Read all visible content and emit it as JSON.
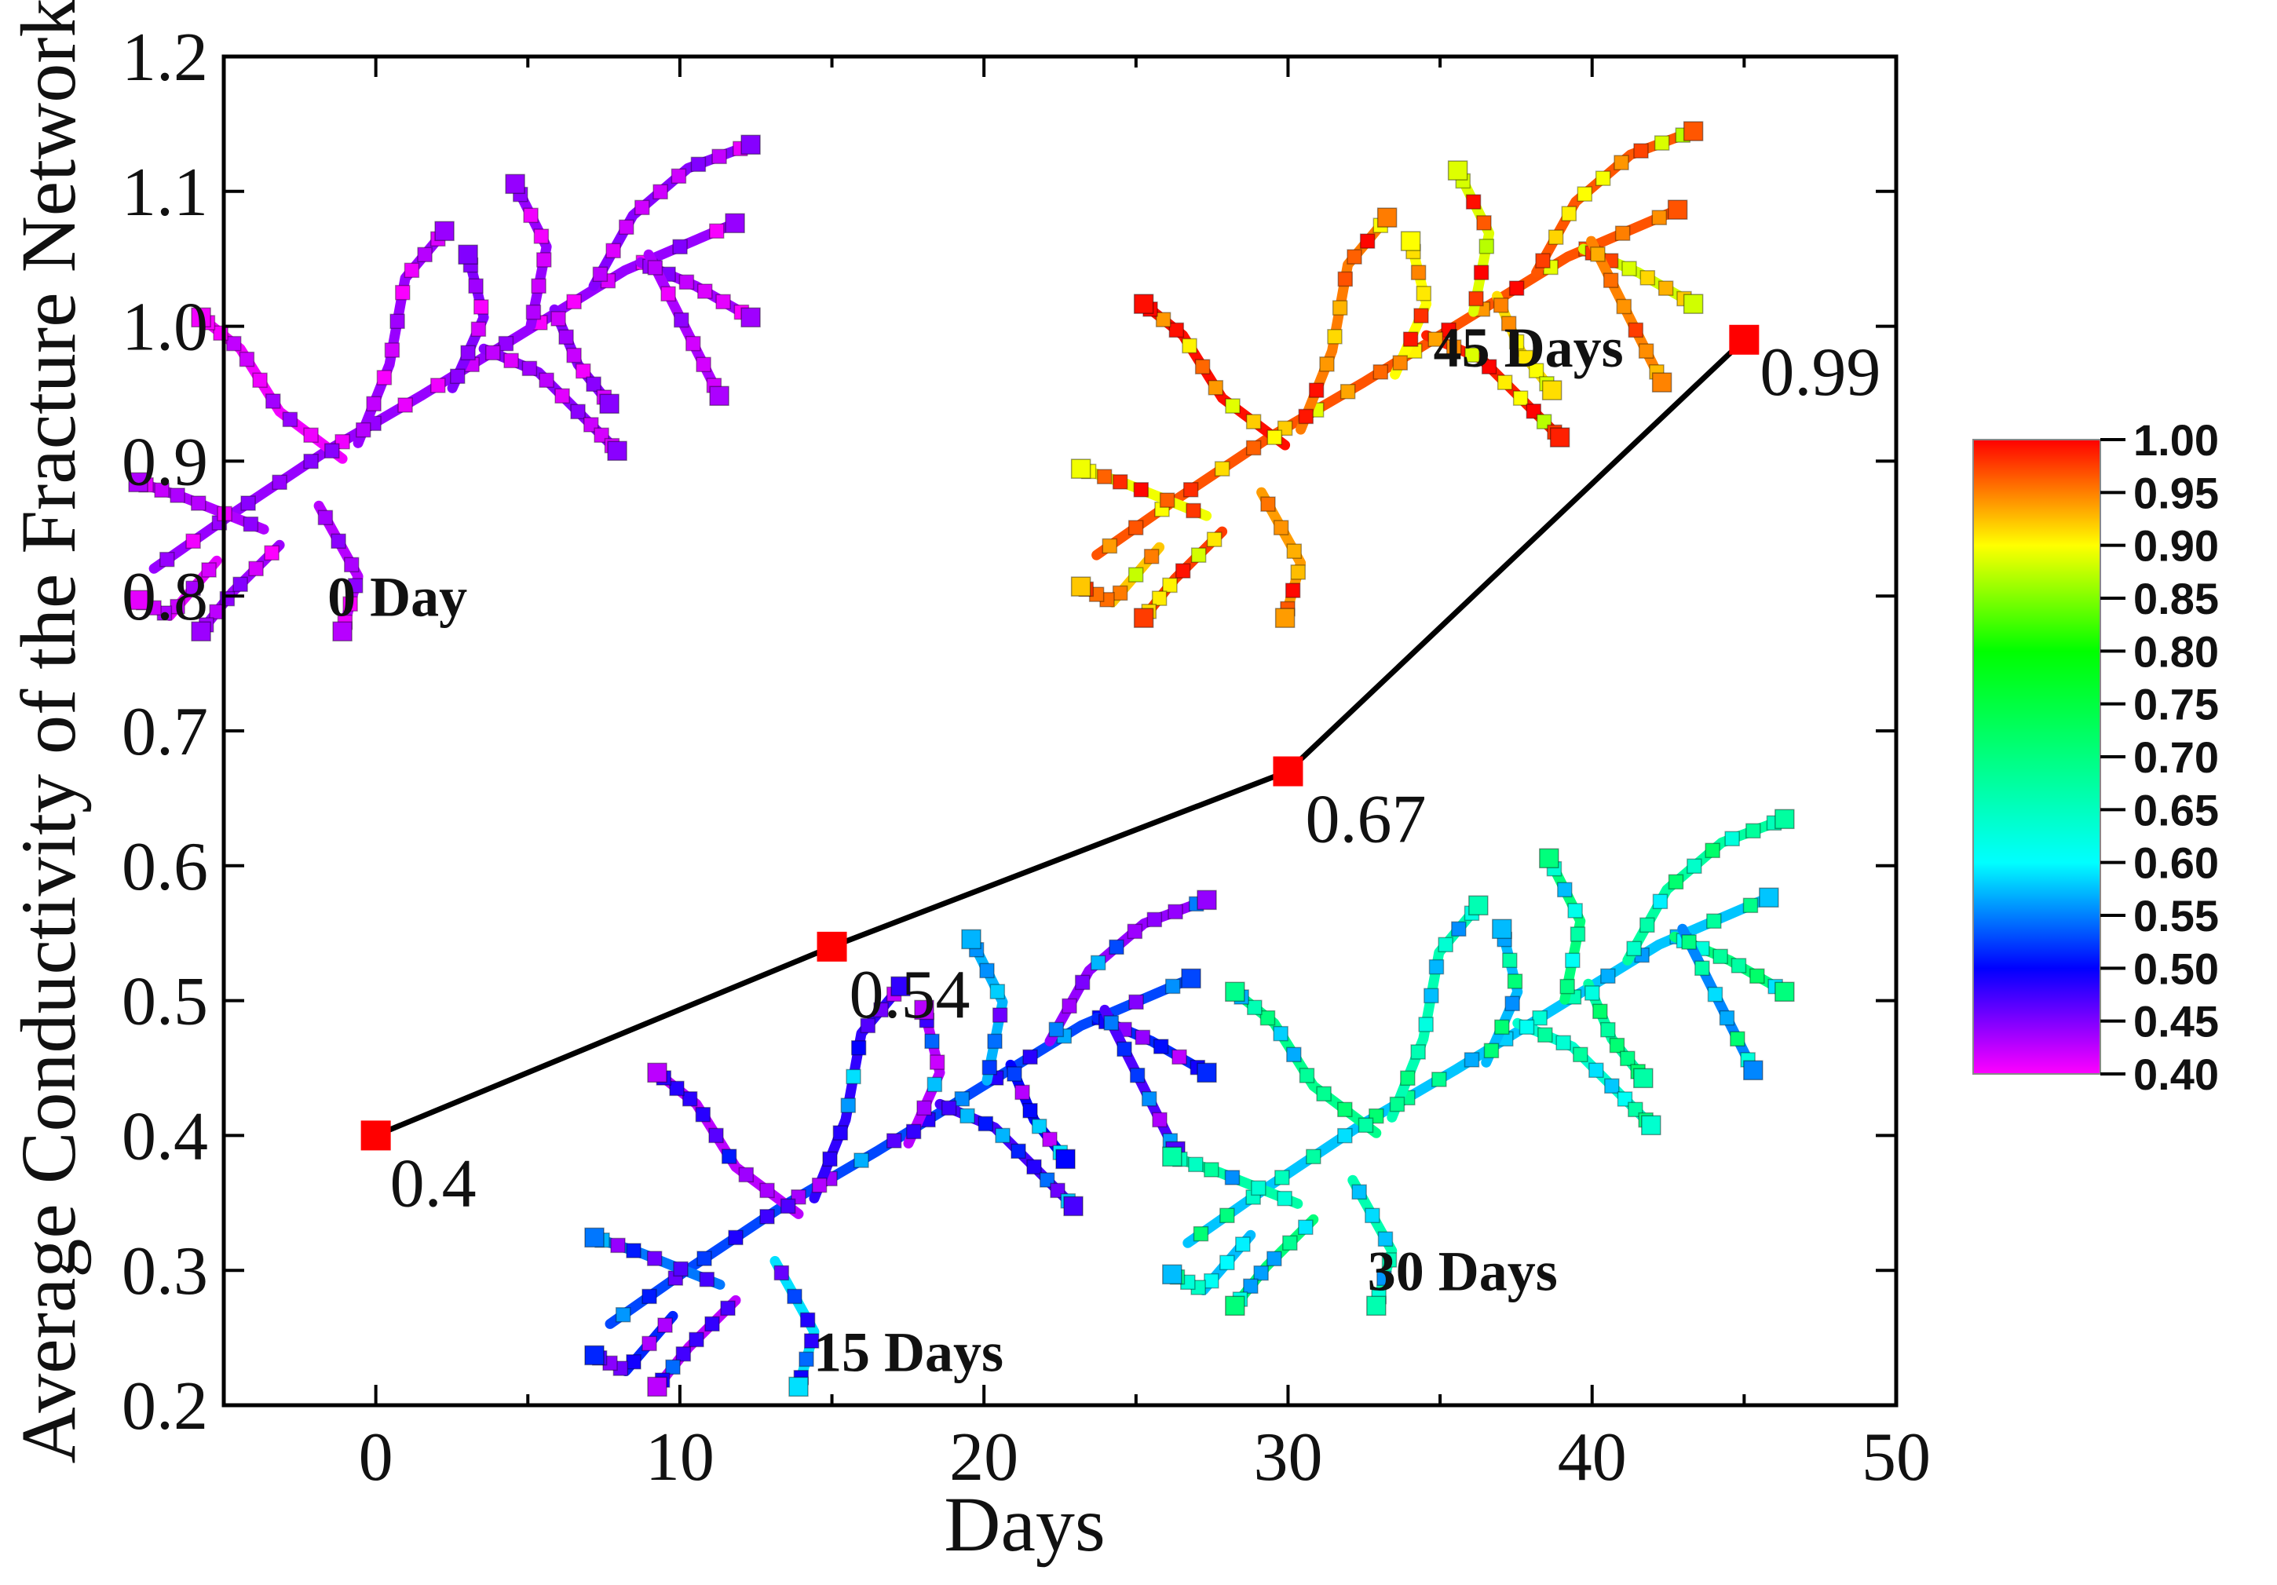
{
  "chart_data": {
    "type": "line",
    "xlabel": "Days",
    "ylabel": "Average Conductivity of the Fracture Network",
    "xlim": [
      -5,
      50
    ],
    "ylim": [
      0.2,
      1.2
    ],
    "xticks": [
      0,
      10,
      20,
      30,
      40,
      50
    ],
    "xtick_labels": [
      "0",
      "10",
      "20",
      "30",
      "40",
      "50"
    ],
    "yticks": [
      0.2,
      0.3,
      0.4,
      0.5,
      0.6,
      0.7,
      0.8,
      0.9,
      1.0,
      1.1,
      1.2
    ],
    "ytick_labels": [
      "0.2",
      "0.3",
      "0.4",
      "0.5",
      "0.6",
      "0.7",
      "0.8",
      "0.9",
      "1.0",
      "1.1",
      "1.2"
    ],
    "series": [
      {
        "name": "Average conductivity",
        "x": [
          0,
          15,
          30,
          45
        ],
        "y": [
          0.4,
          0.54,
          0.67,
          0.99
        ],
        "labels": [
          "0.4",
          "0.54",
          "0.67",
          "0.99"
        ],
        "line_color": "#000000",
        "marker_color": "#ff0000"
      }
    ],
    "insets": [
      {
        "label": "0 Day",
        "value": 0.4,
        "at": [
          2,
          0.96
        ]
      },
      {
        "label": "15 Days",
        "value": 0.54,
        "at": [
          17,
          0.4
        ]
      },
      {
        "label": "30 Days",
        "value": 0.67,
        "at": [
          36,
          0.46
        ]
      },
      {
        "label": "45 Days",
        "value": 0.99,
        "at": [
          33,
          0.97
        ]
      }
    ],
    "colorbar": {
      "min": 0.4,
      "max": 1.0,
      "tick_labels": [
        "1.00",
        "0.95",
        "0.90",
        "0.85",
        "0.80",
        "0.75",
        "0.70",
        "0.65",
        "0.60",
        "0.55",
        "0.50",
        "0.45",
        "0.40"
      ],
      "stops": [
        {
          "v": 0.4,
          "c": "#ff00ff"
        },
        {
          "v": 0.5,
          "c": "#0000ff"
        },
        {
          "v": 0.6,
          "c": "#00ffff"
        },
        {
          "v": 0.8,
          "c": "#00ff00"
        },
        {
          "v": 0.9,
          "c": "#ffff00"
        },
        {
          "v": 1.0,
          "c": "#ff0000"
        }
      ]
    }
  }
}
